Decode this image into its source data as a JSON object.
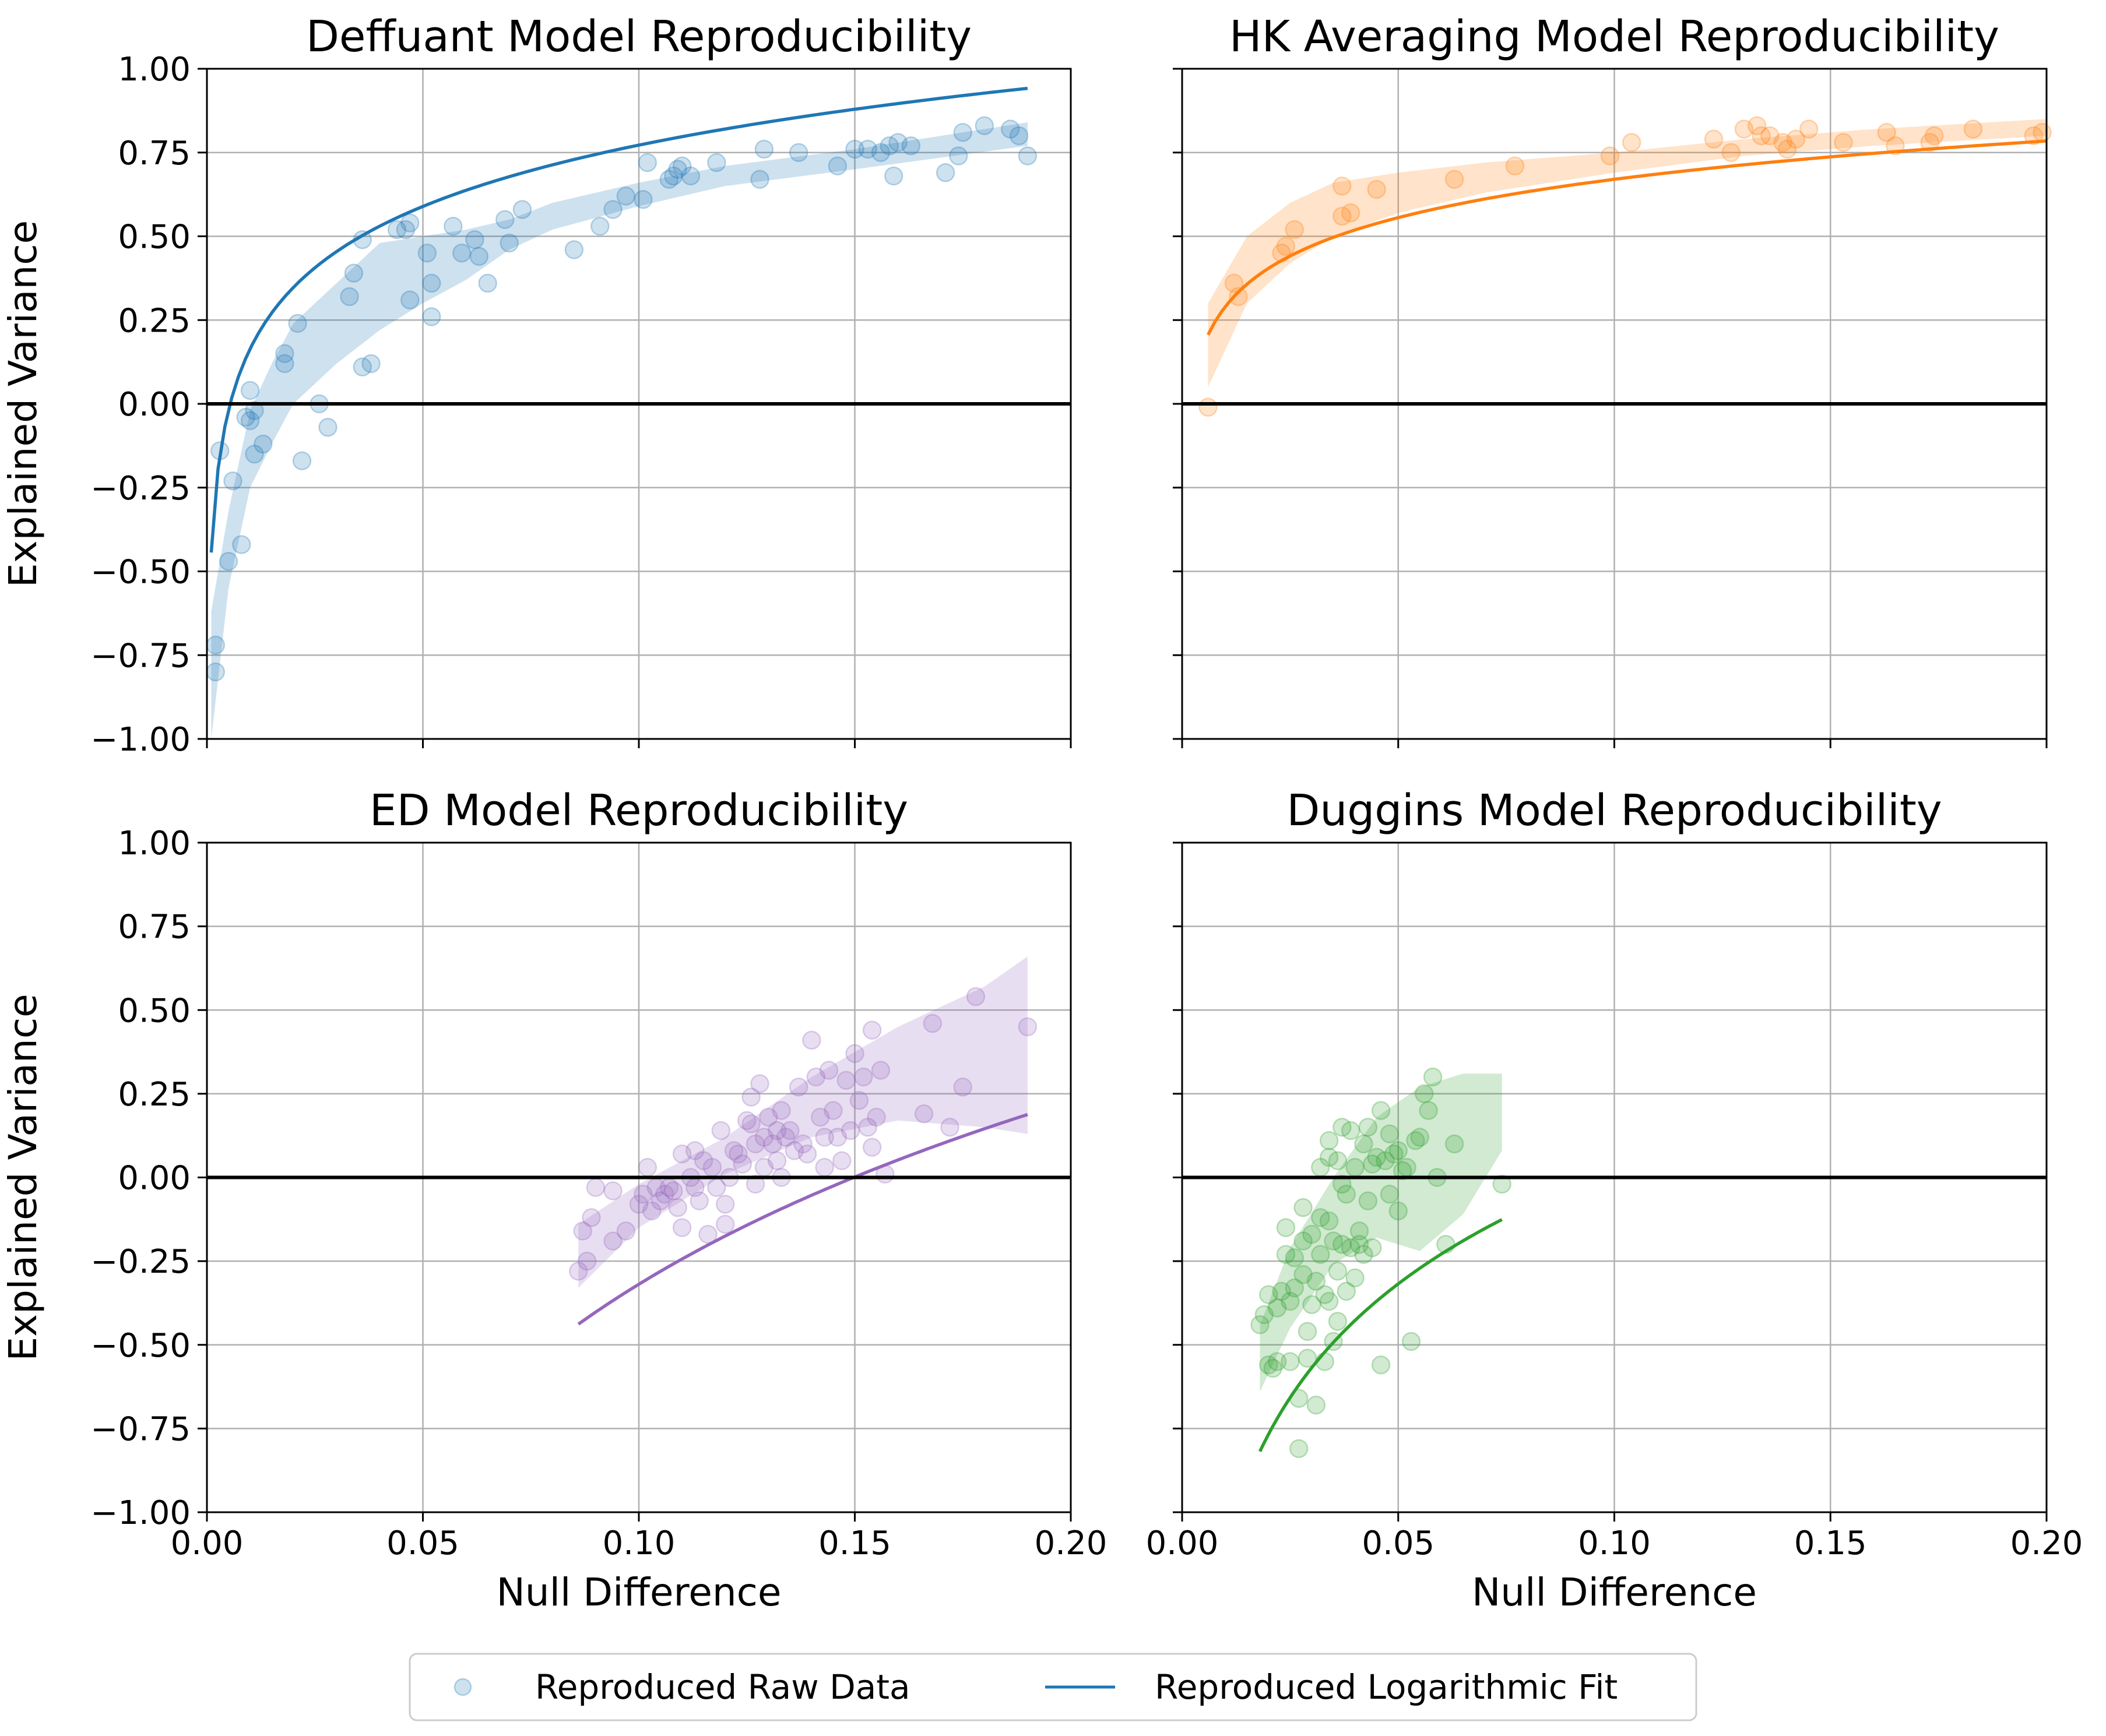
{
  "chart_data": [
    {
      "type": "scatter",
      "title": "Deffuant Model Reproducibility",
      "xlabel": "",
      "ylabel": "Explained Variance",
      "xlim": [
        0.0,
        0.2
      ],
      "ylim": [
        -1.0,
        1.0
      ],
      "xticks": [
        "0.00",
        "0.05",
        "0.10",
        "0.15",
        "0.20"
      ],
      "yticks": [
        "1.00",
        "0.75",
        "0.50",
        "0.25",
        "0.00",
        "−0.25",
        "−0.50",
        "−0.75",
        "−1.00"
      ],
      "grid": true,
      "color": "#1f77b4",
      "points": [
        [
          0.002,
          -0.8
        ],
        [
          0.002,
          -0.72
        ],
        [
          0.003,
          -0.14
        ],
        [
          0.005,
          -0.47
        ],
        [
          0.006,
          -0.23
        ],
        [
          0.008,
          -0.42
        ],
        [
          0.009,
          -0.04
        ],
        [
          0.01,
          -0.05
        ],
        [
          0.01,
          0.04
        ],
        [
          0.011,
          -0.02
        ],
        [
          0.011,
          -0.15
        ],
        [
          0.013,
          -0.12
        ],
        [
          0.018,
          0.15
        ],
        [
          0.018,
          0.12
        ],
        [
          0.021,
          0.24
        ],
        [
          0.022,
          -0.17
        ],
        [
          0.026,
          0.0
        ],
        [
          0.028,
          -0.07
        ],
        [
          0.033,
          0.32
        ],
        [
          0.034,
          0.39
        ],
        [
          0.036,
          0.49
        ],
        [
          0.036,
          0.11
        ],
        [
          0.038,
          0.12
        ],
        [
          0.044,
          0.52
        ],
        [
          0.046,
          0.52
        ],
        [
          0.047,
          0.54
        ],
        [
          0.047,
          0.31
        ],
        [
          0.051,
          0.45
        ],
        [
          0.052,
          0.36
        ],
        [
          0.052,
          0.26
        ],
        [
          0.057,
          0.53
        ],
        [
          0.059,
          0.45
        ],
        [
          0.062,
          0.49
        ],
        [
          0.063,
          0.44
        ],
        [
          0.065,
          0.36
        ],
        [
          0.069,
          0.55
        ],
        [
          0.07,
          0.48
        ],
        [
          0.073,
          0.58
        ],
        [
          0.085,
          0.46
        ],
        [
          0.091,
          0.53
        ],
        [
          0.094,
          0.58
        ],
        [
          0.097,
          0.62
        ],
        [
          0.101,
          0.61
        ],
        [
          0.102,
          0.72
        ],
        [
          0.107,
          0.67
        ],
        [
          0.108,
          0.68
        ],
        [
          0.109,
          0.7
        ],
        [
          0.11,
          0.71
        ],
        [
          0.112,
          0.68
        ],
        [
          0.118,
          0.72
        ],
        [
          0.128,
          0.67
        ],
        [
          0.129,
          0.76
        ],
        [
          0.137,
          0.75
        ],
        [
          0.146,
          0.71
        ],
        [
          0.15,
          0.76
        ],
        [
          0.153,
          0.76
        ],
        [
          0.156,
          0.75
        ],
        [
          0.158,
          0.77
        ],
        [
          0.159,
          0.68
        ],
        [
          0.16,
          0.78
        ],
        [
          0.163,
          0.77
        ],
        [
          0.171,
          0.69
        ],
        [
          0.174,
          0.74
        ],
        [
          0.175,
          0.81
        ],
        [
          0.18,
          0.83
        ],
        [
          0.186,
          0.82
        ],
        [
          0.188,
          0.8
        ],
        [
          0.19,
          0.74
        ]
      ],
      "fit_x": [
        0.001,
        0.19
      ],
      "fit_a": 1.38,
      "fit_b": 0.264,
      "band": [
        [
          0.001,
          -1.0,
          -0.62
        ],
        [
          0.005,
          -0.55,
          -0.32
        ],
        [
          0.01,
          -0.25,
          -0.02
        ],
        [
          0.015,
          -0.12,
          0.12
        ],
        [
          0.02,
          0.0,
          0.24
        ],
        [
          0.03,
          0.12,
          0.36
        ],
        [
          0.04,
          0.22,
          0.48
        ],
        [
          0.05,
          0.3,
          0.5
        ],
        [
          0.06,
          0.37,
          0.52
        ],
        [
          0.07,
          0.46,
          0.55
        ],
        [
          0.08,
          0.52,
          0.6
        ],
        [
          0.1,
          0.59,
          0.66
        ],
        [
          0.12,
          0.65,
          0.71
        ],
        [
          0.15,
          0.7,
          0.76
        ],
        [
          0.19,
          0.77,
          0.84
        ]
      ]
    },
    {
      "type": "scatter",
      "title": "HK Averaging Model Reproducibility",
      "xlabel": "",
      "ylabel": "",
      "xlim": [
        0.0,
        0.2
      ],
      "ylim": [
        -1.0,
        1.0
      ],
      "xticks": [
        "0.00",
        "0.05",
        "0.10",
        "0.15",
        "0.20"
      ],
      "yticks": [],
      "grid": true,
      "color": "#ff7f0e",
      "points": [
        [
          0.006,
          -0.01
        ],
        [
          0.012,
          0.36
        ],
        [
          0.013,
          0.32
        ],
        [
          0.023,
          0.45
        ],
        [
          0.024,
          0.47
        ],
        [
          0.026,
          0.52
        ],
        [
          0.037,
          0.56
        ],
        [
          0.037,
          0.65
        ],
        [
          0.039,
          0.57
        ],
        [
          0.045,
          0.64
        ],
        [
          0.063,
          0.67
        ],
        [
          0.077,
          0.71
        ],
        [
          0.099,
          0.74
        ],
        [
          0.104,
          0.78
        ],
        [
          0.123,
          0.79
        ],
        [
          0.127,
          0.75
        ],
        [
          0.13,
          0.82
        ],
        [
          0.133,
          0.83
        ],
        [
          0.134,
          0.8
        ],
        [
          0.136,
          0.8
        ],
        [
          0.139,
          0.78
        ],
        [
          0.14,
          0.76
        ],
        [
          0.142,
          0.79
        ],
        [
          0.145,
          0.82
        ],
        [
          0.153,
          0.78
        ],
        [
          0.163,
          0.81
        ],
        [
          0.165,
          0.77
        ],
        [
          0.173,
          0.78
        ],
        [
          0.174,
          0.8
        ],
        [
          0.183,
          0.82
        ],
        [
          0.197,
          0.8
        ],
        [
          0.199,
          0.81
        ]
      ],
      "fit_x": [
        0.006,
        0.2
      ],
      "fit_a": 1.05,
      "fit_b": 0.165,
      "band": [
        [
          0.006,
          0.05,
          0.3
        ],
        [
          0.015,
          0.3,
          0.5
        ],
        [
          0.025,
          0.42,
          0.6
        ],
        [
          0.035,
          0.5,
          0.66
        ],
        [
          0.05,
          0.57,
          0.69
        ],
        [
          0.07,
          0.63,
          0.72
        ],
        [
          0.1,
          0.69,
          0.75
        ],
        [
          0.13,
          0.74,
          0.79
        ],
        [
          0.16,
          0.77,
          0.82
        ],
        [
          0.2,
          0.8,
          0.85
        ]
      ]
    },
    {
      "type": "scatter",
      "title": "ED Model Reproducibility",
      "xlabel": "Null Difference",
      "ylabel": "Explained Variance",
      "xlim": [
        0.0,
        0.2
      ],
      "ylim": [
        -1.0,
        1.0
      ],
      "xticks": [
        "0.00",
        "0.05",
        "0.10",
        "0.15",
        "0.20"
      ],
      "yticks": [
        "1.00",
        "0.75",
        "0.50",
        "0.25",
        "0.00",
        "−0.25",
        "−0.50",
        "−0.75",
        "−1.00"
      ],
      "grid": true,
      "color": "#9467bd",
      "points": [
        [
          0.086,
          -0.28
        ],
        [
          0.087,
          -0.16
        ],
        [
          0.088,
          -0.25
        ],
        [
          0.089,
          -0.12
        ],
        [
          0.09,
          -0.03
        ],
        [
          0.094,
          -0.04
        ],
        [
          0.094,
          -0.19
        ],
        [
          0.097,
          -0.16
        ],
        [
          0.1,
          -0.08
        ],
        [
          0.101,
          -0.05
        ],
        [
          0.102,
          0.03
        ],
        [
          0.103,
          -0.1
        ],
        [
          0.104,
          -0.03
        ],
        [
          0.105,
          -0.07
        ],
        [
          0.106,
          -0.05
        ],
        [
          0.107,
          -0.03
        ],
        [
          0.108,
          -0.04
        ],
        [
          0.109,
          -0.09
        ],
        [
          0.11,
          0.07
        ],
        [
          0.11,
          -0.15
        ],
        [
          0.112,
          0.0
        ],
        [
          0.113,
          0.08
        ],
        [
          0.113,
          -0.03
        ],
        [
          0.114,
          -0.07
        ],
        [
          0.115,
          0.05
        ],
        [
          0.116,
          -0.17
        ],
        [
          0.117,
          0.03
        ],
        [
          0.118,
          -0.03
        ],
        [
          0.119,
          0.14
        ],
        [
          0.12,
          -0.08
        ],
        [
          0.12,
          -0.14
        ],
        [
          0.121,
          0.0
        ],
        [
          0.122,
          0.08
        ],
        [
          0.123,
          0.07
        ],
        [
          0.124,
          0.04
        ],
        [
          0.125,
          0.17
        ],
        [
          0.126,
          0.24
        ],
        [
          0.126,
          0.16
        ],
        [
          0.127,
          0.1
        ],
        [
          0.127,
          -0.02
        ],
        [
          0.128,
          0.28
        ],
        [
          0.129,
          0.12
        ],
        [
          0.129,
          0.03
        ],
        [
          0.13,
          0.18
        ],
        [
          0.131,
          0.1
        ],
        [
          0.132,
          0.14
        ],
        [
          0.132,
          0.05
        ],
        [
          0.133,
          0.2
        ],
        [
          0.133,
          0.0
        ],
        [
          0.134,
          0.12
        ],
        [
          0.135,
          0.14
        ],
        [
          0.136,
          0.08
        ],
        [
          0.137,
          0.27
        ],
        [
          0.138,
          0.1
        ],
        [
          0.139,
          0.07
        ],
        [
          0.14,
          0.41
        ],
        [
          0.141,
          0.3
        ],
        [
          0.142,
          0.18
        ],
        [
          0.143,
          0.12
        ],
        [
          0.143,
          0.03
        ],
        [
          0.144,
          0.32
        ],
        [
          0.145,
          0.2
        ],
        [
          0.146,
          0.12
        ],
        [
          0.147,
          0.05
        ],
        [
          0.148,
          0.29
        ],
        [
          0.149,
          0.14
        ],
        [
          0.15,
          0.37
        ],
        [
          0.151,
          0.23
        ],
        [
          0.152,
          0.3
        ],
        [
          0.153,
          0.15
        ],
        [
          0.154,
          0.09
        ],
        [
          0.154,
          0.44
        ],
        [
          0.155,
          0.18
        ],
        [
          0.156,
          0.32
        ],
        [
          0.157,
          0.01
        ],
        [
          0.166,
          0.19
        ],
        [
          0.168,
          0.46
        ],
        [
          0.172,
          0.15
        ],
        [
          0.175,
          0.27
        ],
        [
          0.178,
          0.54
        ],
        [
          0.19,
          0.45
        ]
      ],
      "fit_x": [
        0.086,
        0.19
      ],
      "fit_a": 1.5,
      "fit_b": 0.79,
      "band": [
        [
          0.086,
          -0.33,
          -0.14
        ],
        [
          0.1,
          -0.15,
          -0.02
        ],
        [
          0.12,
          0.01,
          0.12
        ],
        [
          0.14,
          0.12,
          0.3
        ],
        [
          0.16,
          0.17,
          0.45
        ],
        [
          0.18,
          0.15,
          0.57
        ],
        [
          0.19,
          0.13,
          0.66
        ]
      ]
    },
    {
      "type": "scatter",
      "title": "Duggins Model Reproducibility",
      "xlabel": "Null Difference",
      "ylabel": "",
      "xlim": [
        0.0,
        0.2
      ],
      "ylim": [
        -1.0,
        1.0
      ],
      "xticks": [
        "0.00",
        "0.05",
        "0.10",
        "0.15",
        "0.20"
      ],
      "yticks": [],
      "grid": true,
      "color": "#2ca02c",
      "points": [
        [
          0.018,
          -0.44
        ],
        [
          0.019,
          -0.41
        ],
        [
          0.02,
          -0.35
        ],
        [
          0.02,
          -0.56
        ],
        [
          0.021,
          -0.57
        ],
        [
          0.022,
          -0.39
        ],
        [
          0.022,
          -0.55
        ],
        [
          0.023,
          -0.34
        ],
        [
          0.024,
          -0.23
        ],
        [
          0.024,
          -0.15
        ],
        [
          0.025,
          -0.37
        ],
        [
          0.025,
          -0.55
        ],
        [
          0.026,
          -0.24
        ],
        [
          0.026,
          -0.33
        ],
        [
          0.027,
          -0.66
        ],
        [
          0.027,
          -0.81
        ],
        [
          0.028,
          -0.09
        ],
        [
          0.028,
          -0.19
        ],
        [
          0.028,
          -0.29
        ],
        [
          0.029,
          -0.46
        ],
        [
          0.029,
          -0.54
        ],
        [
          0.03,
          -0.17
        ],
        [
          0.03,
          -0.38
        ],
        [
          0.031,
          -0.68
        ],
        [
          0.031,
          -0.31
        ],
        [
          0.032,
          0.03
        ],
        [
          0.032,
          -0.12
        ],
        [
          0.032,
          -0.23
        ],
        [
          0.033,
          -0.35
        ],
        [
          0.033,
          -0.55
        ],
        [
          0.034,
          0.06
        ],
        [
          0.034,
          0.11
        ],
        [
          0.034,
          -0.13
        ],
        [
          0.034,
          -0.37
        ],
        [
          0.035,
          -0.19
        ],
        [
          0.035,
          -0.49
        ],
        [
          0.036,
          0.05
        ],
        [
          0.036,
          -0.28
        ],
        [
          0.036,
          -0.43
        ],
        [
          0.037,
          0.15
        ],
        [
          0.037,
          -0.02
        ],
        [
          0.037,
          -0.2
        ],
        [
          0.038,
          -0.34
        ],
        [
          0.038,
          -0.05
        ],
        [
          0.039,
          0.14
        ],
        [
          0.039,
          -0.21
        ],
        [
          0.04,
          -0.3
        ],
        [
          0.04,
          0.03
        ],
        [
          0.041,
          -0.16
        ],
        [
          0.041,
          -0.2
        ],
        [
          0.042,
          0.1
        ],
        [
          0.042,
          -0.23
        ],
        [
          0.043,
          0.15
        ],
        [
          0.043,
          -0.07
        ],
        [
          0.044,
          0.04
        ],
        [
          0.044,
          -0.21
        ],
        [
          0.045,
          0.06
        ],
        [
          0.046,
          0.2
        ],
        [
          0.046,
          -0.56
        ],
        [
          0.047,
          0.05
        ],
        [
          0.048,
          -0.05
        ],
        [
          0.048,
          0.13
        ],
        [
          0.049,
          0.07
        ],
        [
          0.05,
          -0.1
        ],
        [
          0.05,
          0.08
        ],
        [
          0.051,
          0.02
        ],
        [
          0.052,
          0.03
        ],
        [
          0.053,
          -0.49
        ],
        [
          0.054,
          0.11
        ],
        [
          0.055,
          0.12
        ],
        [
          0.056,
          0.25
        ],
        [
          0.057,
          0.2
        ],
        [
          0.058,
          0.3
        ],
        [
          0.059,
          0.0
        ],
        [
          0.061,
          -0.2
        ],
        [
          0.063,
          0.1
        ],
        [
          0.074,
          -0.02
        ]
      ],
      "fit_x": [
        0.018,
        0.074
      ],
      "fit_a": 1.15,
      "fit_b": 0.49,
      "band": [
        [
          0.018,
          -0.64,
          -0.44
        ],
        [
          0.025,
          -0.45,
          -0.21
        ],
        [
          0.035,
          -0.26,
          0.0
        ],
        [
          0.045,
          -0.18,
          0.18
        ],
        [
          0.055,
          -0.22,
          0.27
        ],
        [
          0.065,
          -0.11,
          0.31
        ],
        [
          0.074,
          0.08,
          0.31
        ]
      ]
    }
  ],
  "legend": {
    "placement": "bottom-center",
    "items": [
      {
        "label": "Reproduced Raw Data",
        "kind": "marker",
        "color": "#1f77b4"
      },
      {
        "label": "Reproduced Logarithmic Fit",
        "kind": "line",
        "color": "#1f77b4"
      }
    ]
  }
}
